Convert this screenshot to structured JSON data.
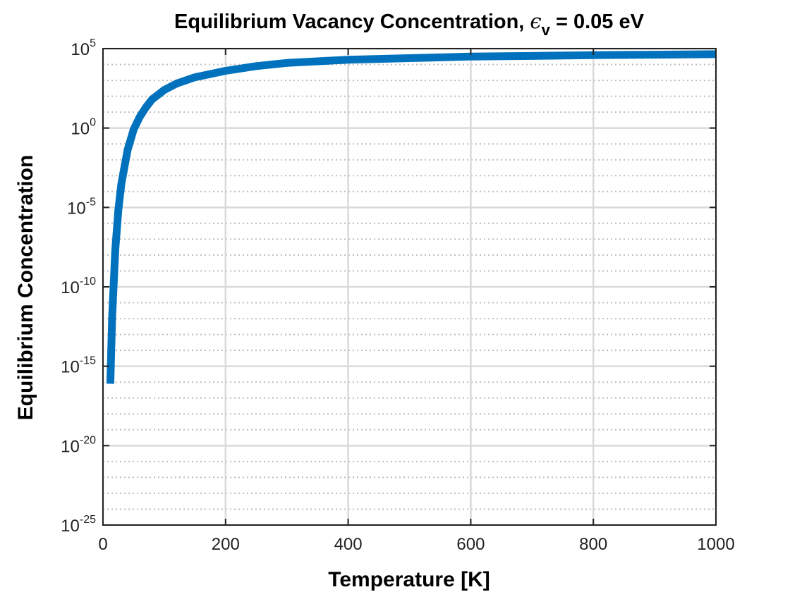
{
  "chart_data": {
    "type": "line",
    "title": "Equilibrium Vacancy Concentration, ",
    "title_symbol": "ϵ",
    "title_subscript": "v",
    "title_suffix": " = 0.05 eV",
    "xlabel": "Temperature [K]",
    "ylabel": "Equilibrium Concentration",
    "xlim": [
      0,
      1000
    ],
    "ylim_log10": [
      -25,
      5
    ],
    "y_scale": "log",
    "grid": true,
    "minor_grid": true,
    "x_ticks": [
      0,
      200,
      400,
      600,
      800,
      1000
    ],
    "x_tick_labels": [
      "0",
      "200",
      "400",
      "600",
      "800",
      "1000"
    ],
    "y_tick_labels": [
      {
        "base": "10",
        "exp": "-25",
        "value_log10": -25
      },
      {
        "base": "10",
        "exp": "-20",
        "value_log10": -20
      },
      {
        "base": "10",
        "exp": "-15",
        "value_log10": -15
      },
      {
        "base": "10",
        "exp": "-10",
        "value_log10": -10
      },
      {
        "base": "10",
        "exp": "-5",
        "value_log10": -5
      },
      {
        "base": "10",
        "exp": "0",
        "value_log10": 0
      },
      {
        "base": "10",
        "exp": "5",
        "value_log10": 5
      }
    ],
    "series": [
      {
        "color": "#0072BD",
        "x": [
          12,
          15,
          20,
          25,
          30,
          40,
          50,
          60,
          70,
          80,
          100,
          120,
          150,
          200,
          250,
          300,
          400,
          500,
          600,
          700,
          800,
          900,
          1000
        ],
        "y_log10": [
          -21.0,
          -16.8,
          -12.6,
          -10.1,
          -8.4,
          -6.3,
          -5.0,
          -4.2,
          -3.6,
          -3.1,
          -2.5,
          -2.1,
          -1.7,
          -1.3,
          -1.0,
          -0.8,
          -0.6,
          -0.5,
          -0.4,
          -0.36,
          -0.31,
          -0.28,
          -0.25
        ],
        "y_offset_log10": 4.9
      }
    ]
  }
}
